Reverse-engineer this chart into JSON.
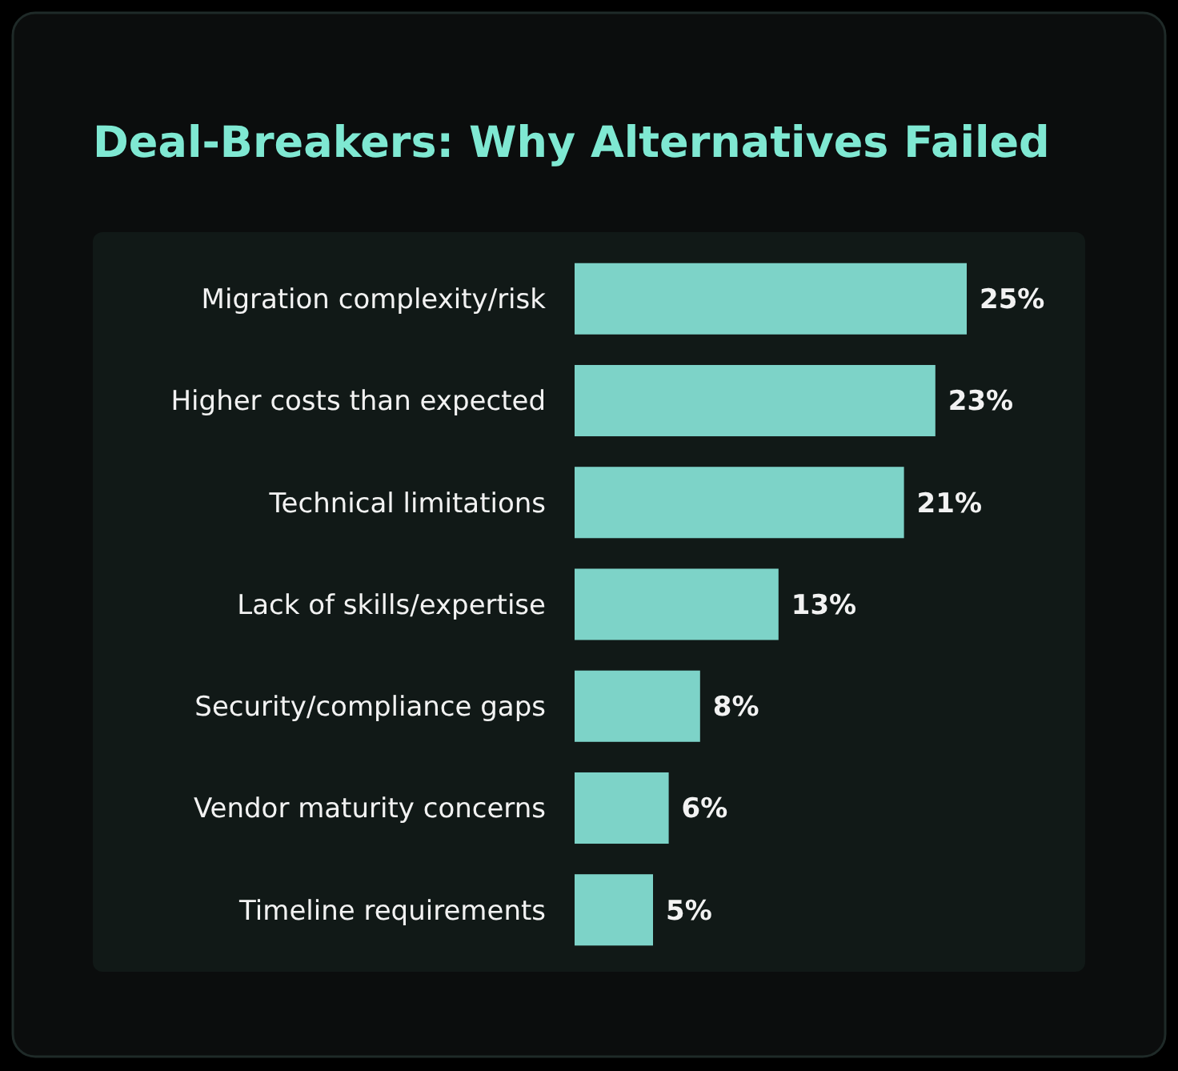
{
  "chart_data": {
    "type": "bar",
    "orientation": "horizontal",
    "title": "Deal-Breakers: Why Alternatives Failed",
    "categories": [
      "Migration complexity/risk",
      "Higher costs than expected",
      "Technical limitations",
      "Lack of skills/expertise",
      "Security/compliance gaps",
      "Vendor maturity concerns",
      "Timeline requirements"
    ],
    "values": [
      25,
      23,
      21,
      13,
      8,
      6,
      5
    ],
    "value_labels": [
      "25%",
      "23%",
      "21%",
      "13%",
      "8%",
      "6%",
      "5%"
    ],
    "color": "#7dd3c8"
  }
}
